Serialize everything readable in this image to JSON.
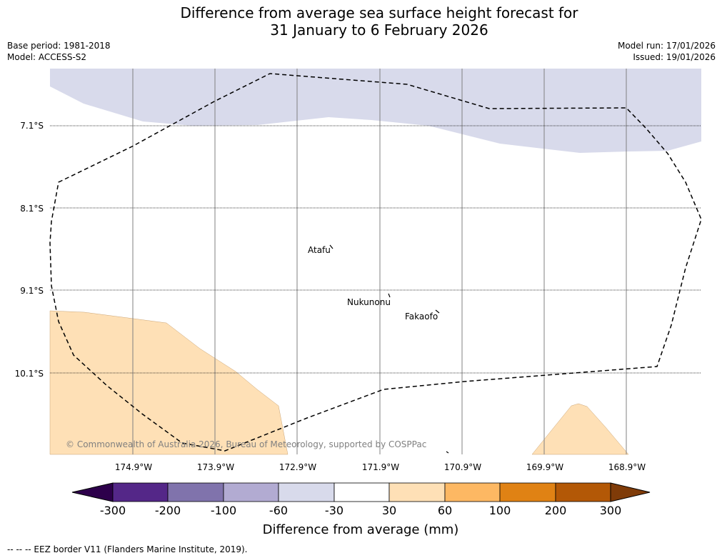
{
  "title": {
    "line1": "Difference from average sea surface height forecast for",
    "line2": "31 January to 6 February 2026"
  },
  "meta": {
    "base_period": "Base period: 1981-2018",
    "model": "Model: ACCESS-S2",
    "model_run": "Model run: 17/01/2026",
    "issued": "Issued: 19/01/2026"
  },
  "map": {
    "lat_labels": [
      "7.1°S",
      "8.1°S",
      "9.1°S",
      "10.1°S"
    ],
    "lon_labels": [
      "174.9°W",
      "173.9°W",
      "172.9°W",
      "171.9°W",
      "170.9°W",
      "169.9°W",
      "168.9°W"
    ],
    "places": [
      "Atafu",
      "Nukunonu",
      "Fakaofo"
    ],
    "copyright": "© Commonwealth of Australia 2026, Bureau of Meteorology, supported by COSPPac"
  },
  "legend": {
    "title": "Difference from average (mm)",
    "tick_labels": [
      "-300",
      "-200",
      "-100",
      "-60",
      "-30",
      "30",
      "60",
      "100",
      "200",
      "300"
    ],
    "colors": [
      "#2d004b",
      "#542788",
      "#8073ac",
      "#b2abd2",
      "#d8daeb",
      "#ffffff",
      "#fee0b6",
      "#fdb863",
      "#e08214",
      "#b35806",
      "#7f3b08"
    ]
  },
  "footer": "--  --  -- EEZ border V11 (Flanders Marine Institute, 2019)."
}
